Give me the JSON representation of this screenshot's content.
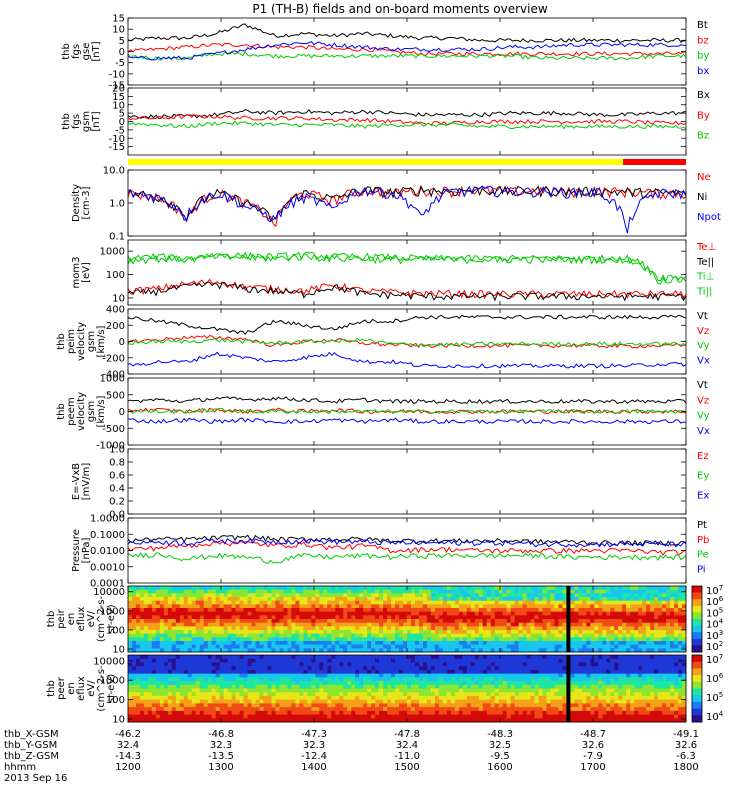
{
  "title": "P1 (TH-B) fields and on-board moments overview",
  "date_label": "2013 Sep 16",
  "colors": {
    "black": "#000000",
    "red": "#ff0000",
    "green": "#00cc00",
    "blue": "#0000ff",
    "yellow": "#ffff00",
    "bar_red": "#ff0000"
  },
  "chart_data": [
    {
      "type": "line",
      "ylabel": [
        "thb",
        "fgs",
        "gse",
        "[nT]"
      ],
      "ylim": [
        -15,
        15
      ],
      "yticks": [
        15,
        10,
        5,
        0,
        -5,
        -10,
        -15
      ],
      "legend": [
        "Bt",
        "bz",
        "by",
        "bx"
      ],
      "series": [
        {
          "name": "Bt",
          "color": "#000000",
          "values": [
            5,
            6,
            6,
            8,
            12,
            7,
            8,
            7,
            8,
            7,
            6,
            6,
            5,
            5,
            5,
            5,
            5,
            5,
            5,
            5
          ]
        },
        {
          "name": "bz",
          "color": "#ff0000",
          "values": [
            0,
            1,
            2,
            3,
            3,
            2,
            2,
            1,
            1,
            0,
            -1,
            -1,
            -1,
            -1,
            -1,
            -1,
            -1,
            -1,
            -1,
            -1
          ]
        },
        {
          "name": "by",
          "color": "#00cc00",
          "values": [
            -2,
            -3,
            -3,
            -1,
            -1,
            -2,
            -2,
            -2,
            -2,
            -2,
            -2,
            -2,
            -2,
            -2,
            -3,
            -3,
            -3,
            -3,
            -2,
            -2
          ]
        },
        {
          "name": "bx",
          "color": "#0000ff",
          "values": [
            -3,
            -3,
            -3,
            -1,
            1,
            3,
            4,
            3,
            2,
            1,
            1,
            1,
            1,
            2,
            2,
            3,
            3,
            3,
            3,
            3
          ]
        }
      ]
    },
    {
      "type": "line",
      "ylabel": [
        "thb",
        "fgs",
        "gsm",
        "[nT]"
      ],
      "ylim": [
        -20,
        20
      ],
      "yticks": [
        20,
        15,
        10,
        5,
        0,
        -5,
        -10,
        -15
      ],
      "legend": [
        "Bx",
        "By",
        "Bz"
      ],
      "series": [
        {
          "name": "Bx",
          "color": "#000000",
          "values": [
            3,
            3,
            3,
            4,
            6,
            5,
            6,
            5,
            6,
            5,
            4,
            4,
            4,
            5,
            5,
            5,
            4,
            4,
            5,
            5
          ]
        },
        {
          "name": "By",
          "color": "#ff0000",
          "values": [
            2,
            2,
            3,
            3,
            2,
            2,
            2,
            1,
            1,
            0,
            -1,
            -1,
            0,
            0,
            0,
            0,
            0,
            0,
            -1,
            -1
          ]
        },
        {
          "name": "Bz",
          "color": "#00cc00",
          "values": [
            -1,
            -2,
            -3,
            -1,
            -1,
            -2,
            -2,
            -2,
            -3,
            -2,
            -2,
            -2,
            -3,
            -3,
            -3,
            -3,
            -3,
            -3,
            -3,
            -3
          ]
        }
      ]
    },
    {
      "type": "line",
      "ylabel": [
        "Density",
        "[cm-3]"
      ],
      "scale": "log",
      "ylim": [
        0.1,
        10.0
      ],
      "yticks": [
        10.0,
        1.0,
        0.1
      ],
      "ytick_labels": [
        "10.0",
        "1.0",
        "0.1"
      ],
      "legend": [
        "Ne",
        "Ni",
        "Npot"
      ],
      "series": [
        {
          "name": "Ne",
          "color": "#ff0000",
          "values": [
            2,
            1.5,
            0.3,
            2,
            1,
            0.2,
            2,
            1.2,
            2.5,
            2,
            2.5,
            2.3,
            2.5,
            2.2,
            2.4,
            2.2,
            2.3,
            2.2,
            2.0,
            2.0
          ]
        },
        {
          "name": "Ni",
          "color": "#000000",
          "values": [
            2,
            1.6,
            0.35,
            2,
            1,
            0.25,
            2,
            1.3,
            2.5,
            2.1,
            2.5,
            2.3,
            2.5,
            2.3,
            2.4,
            2.2,
            2.3,
            2.2,
            2.0,
            2.0
          ]
        },
        {
          "name": "Npot",
          "color": "#0000ff",
          "values": [
            2,
            1.5,
            0.4,
            2,
            0.8,
            0.3,
            1.5,
            0.6,
            2.5,
            2,
            0.3,
            2.2,
            2.5,
            2.2,
            2.3,
            2.1,
            2.2,
            0.1,
            2.0,
            2.0
          ]
        }
      ]
    },
    {
      "type": "line",
      "ylabel": [
        "mom3",
        "[eV]"
      ],
      "scale": "log",
      "ylim": [
        5,
        3000
      ],
      "yticks": [
        1000,
        100,
        10
      ],
      "ytick_labels": [
        "1000",
        "100",
        "10"
      ],
      "legend": [
        "Te⊥",
        "Te||",
        "Ti⊥",
        "Ti||"
      ],
      "series": [
        {
          "name": "Te⊥",
          "color": "#ff0000",
          "values": [
            20,
            25,
            40,
            50,
            30,
            25,
            20,
            35,
            20,
            18,
            16,
            16,
            15,
            15,
            15,
            15,
            15,
            15,
            15,
            15
          ]
        },
        {
          "name": "Te||",
          "color": "#000000",
          "values": [
            15,
            20,
            30,
            40,
            25,
            20,
            15,
            30,
            15,
            14,
            12,
            12,
            12,
            12,
            12,
            12,
            12,
            12,
            12,
            12
          ]
        },
        {
          "name": "Ti⊥",
          "color": "#00cc00",
          "values": [
            500,
            600,
            500,
            700,
            650,
            600,
            700,
            600,
            600,
            550,
            500,
            500,
            500,
            500,
            500,
            500,
            500,
            500,
            80,
            80
          ]
        },
        {
          "name": "Ti||",
          "color": "#00cc00",
          "values": [
            400,
            500,
            450,
            600,
            550,
            500,
            600,
            500,
            500,
            450,
            450,
            450,
            450,
            450,
            450,
            450,
            450,
            450,
            60,
            60
          ]
        }
      ]
    },
    {
      "type": "line",
      "ylabel": [
        "thb",
        "peim",
        "velocity",
        "gsm",
        "[km/s]"
      ],
      "ylim": [
        -400,
        400
      ],
      "yticks": [
        400,
        200,
        0,
        -200,
        -400
      ],
      "legend": [
        "Vt",
        "Vz",
        "Vy",
        "Vx"
      ],
      "series": [
        {
          "name": "Vt",
          "color": "#000000",
          "values": [
            300,
            250,
            200,
            150,
            100,
            250,
            200,
            150,
            250,
            250,
            300,
            300,
            300,
            300,
            300,
            300,
            300,
            300,
            300,
            300
          ]
        },
        {
          "name": "Vz",
          "color": "#ff0000",
          "values": [
            0,
            20,
            50,
            50,
            30,
            -50,
            0,
            20,
            -20,
            -40,
            -50,
            -50,
            -50,
            -50,
            -50,
            -50,
            -50,
            -60,
            -50,
            -50
          ]
        },
        {
          "name": "Vy",
          "color": "#00cc00",
          "values": [
            -20,
            0,
            0,
            20,
            0,
            -20,
            0,
            0,
            20,
            -30,
            -40,
            -40,
            -30,
            -30,
            -30,
            -30,
            -30,
            -30,
            -30,
            -30
          ]
        },
        {
          "name": "Vx",
          "color": "#0000ff",
          "values": [
            -300,
            -250,
            -250,
            -150,
            -200,
            -250,
            -200,
            -150,
            -250,
            -250,
            -300,
            -300,
            -300,
            -300,
            -300,
            -300,
            -300,
            -300,
            -280,
            -280
          ]
        }
      ]
    },
    {
      "type": "line",
      "ylabel": [
        "thb",
        "peem",
        "velocity",
        "gsm",
        "[km/s]"
      ],
      "ylim": [
        -1000,
        1000
      ],
      "yticks": [
        1000,
        500,
        0,
        -500,
        -1000
      ],
      "legend": [
        "Vt",
        "Vz",
        "Vy",
        "Vx"
      ],
      "series": [
        {
          "name": "Vt",
          "color": "#000000",
          "values": [
            300,
            350,
            300,
            400,
            350,
            400,
            350,
            300,
            350,
            300,
            300,
            300,
            300,
            300,
            300,
            300,
            300,
            300,
            300,
            300
          ]
        },
        {
          "name": "Vz",
          "color": "#ff0000",
          "values": [
            50,
            50,
            0,
            50,
            0,
            50,
            0,
            50,
            0,
            0,
            0,
            0,
            0,
            0,
            0,
            0,
            0,
            0,
            0,
            0
          ]
        },
        {
          "name": "Vy",
          "color": "#00cc00",
          "values": [
            0,
            0,
            0,
            50,
            0,
            0,
            0,
            0,
            0,
            0,
            0,
            0,
            0,
            0,
            0,
            0,
            0,
            0,
            0,
            0
          ]
        },
        {
          "name": "Vx",
          "color": "#0000ff",
          "values": [
            -250,
            -300,
            -250,
            -300,
            -250,
            -300,
            -300,
            -250,
            -300,
            -250,
            -300,
            -300,
            -300,
            -300,
            -300,
            -300,
            -300,
            -300,
            -300,
            -300
          ]
        }
      ]
    },
    {
      "type": "line",
      "ylabel": [
        "E=-VxB",
        "[mV/m]"
      ],
      "ylim": [
        0.0,
        1.0
      ],
      "yticks": [
        1.0,
        0.8,
        0.6,
        0.4,
        0.2,
        0.0
      ],
      "ytick_labels": [
        "1.0",
        "0.8",
        "0.6",
        "0.4",
        "0.2",
        "0.0"
      ],
      "legend": [
        "Ez",
        "Ey",
        "Ex"
      ],
      "series": []
    },
    {
      "type": "line",
      "ylabel": [
        "Pressure",
        "[nPa]"
      ],
      "scale": "log",
      "ylim": [
        0.0001,
        1.0
      ],
      "yticks": [
        1.0,
        0.1,
        0.01,
        0.001,
        0.0001
      ],
      "ytick_labels": [
        "1.0000",
        "0.1000",
        "0.0100",
        "0.0010",
        "0.0001"
      ],
      "legend": [
        "Pt",
        "Pb",
        "Pe",
        "Pi"
      ],
      "series": [
        {
          "name": "Pt",
          "color": "#000000",
          "values": [
            0.04,
            0.05,
            0.05,
            0.06,
            0.07,
            0.05,
            0.05,
            0.05,
            0.05,
            0.04,
            0.04,
            0.04,
            0.04,
            0.04,
            0.035,
            0.035,
            0.03,
            0.03,
            0.03,
            0.03
          ]
        },
        {
          "name": "Pb",
          "color": "#ff0000",
          "values": [
            0.012,
            0.015,
            0.02,
            0.03,
            0.03,
            0.02,
            0.025,
            0.015,
            0.02,
            0.01,
            0.012,
            0.012,
            0.01,
            0.01,
            0.01,
            0.01,
            0.01,
            0.01,
            0.008,
            0.008
          ]
        },
        {
          "name": "Pe",
          "color": "#00cc00",
          "values": [
            0.005,
            0.006,
            0.003,
            0.005,
            0.004,
            0.002,
            0.005,
            0.004,
            0.005,
            0.004,
            0.005,
            0.005,
            0.005,
            0.005,
            0.005,
            0.004,
            0.004,
            0.004,
            0.004,
            0.004
          ]
        },
        {
          "name": "Pi",
          "color": "#0000ff",
          "values": [
            0.03,
            0.035,
            0.03,
            0.04,
            0.04,
            0.035,
            0.04,
            0.035,
            0.035,
            0.03,
            0.03,
            0.03,
            0.03,
            0.03,
            0.025,
            0.025,
            0.025,
            0.025,
            0.025,
            0.025
          ]
        }
      ]
    },
    {
      "type": "heatmap",
      "ylabel": [
        "thb",
        "peir",
        "en",
        "eflux",
        "eV/",
        "(cm^2-s-",
        "sr-eV)"
      ],
      "yticks": [
        10000,
        1000,
        100,
        10
      ],
      "ytick_labels": [
        "10000",
        "1000",
        "100",
        "10"
      ],
      "colorbar": {
        "ticks": [
          "10^7",
          "10^6",
          "10^5",
          "10^4",
          "10^3",
          "10^2"
        ]
      }
    },
    {
      "type": "heatmap",
      "ylabel": [
        "thb",
        "peer",
        "en",
        "eflux",
        "eV/",
        "(cm^2-s-",
        "sr-eV)"
      ],
      "yticks": [
        10000,
        1000,
        100,
        10
      ],
      "ytick_labels": [
        "10000",
        "1000",
        "100",
        "10"
      ],
      "colorbar": {
        "ticks": [
          "10^7",
          "10^6",
          "10^5",
          "10^4"
        ]
      }
    }
  ],
  "x_axis": {
    "row_labels": [
      "thb_X-GSM",
      "thb_Y-GSM",
      "thb_Z-GSM",
      "hhmm"
    ],
    "columns": [
      [
        "-46.2",
        "32.4",
        "-14.3",
        "1200"
      ],
      [
        "-46.8",
        "32.3",
        "-13.5",
        "1300"
      ],
      [
        "-47.3",
        "32.3",
        "-12.4",
        "1400"
      ],
      [
        "-47.8",
        "32.4",
        "-11.0",
        "1500"
      ],
      [
        "-48.3",
        "32.5",
        "-9.5",
        "1600"
      ],
      [
        "-48.7",
        "32.6",
        "-7.9",
        "1700"
      ],
      [
        "-49.1",
        "32.6",
        "-6.3",
        "1800"
      ]
    ]
  }
}
